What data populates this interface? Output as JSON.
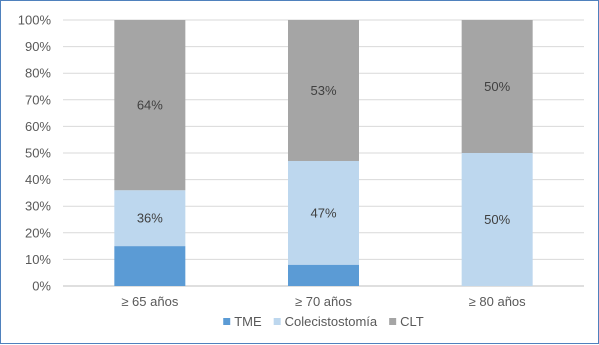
{
  "chart_data": {
    "type": "bar",
    "stacked": true,
    "percent": true,
    "categories": [
      "≥ 65 años",
      "≥ 70 años",
      "≥ 80 años"
    ],
    "series": [
      {
        "name": "TME",
        "values": [
          15,
          8,
          0
        ],
        "color": "#5b9bd5"
      },
      {
        "name": "Colecistostomía",
        "values": [
          21,
          39,
          50
        ],
        "color": "#bdd7ee"
      },
      {
        "name": "CLT",
        "values": [
          64,
          53,
          50
        ],
        "color": "#a5a5a5"
      }
    ],
    "data_labels": [
      {
        "category": 0,
        "series": 1,
        "text": "36%"
      },
      {
        "category": 0,
        "series": 2,
        "text": "64%"
      },
      {
        "category": 1,
        "series": 1,
        "text": "47%"
      },
      {
        "category": 1,
        "series": 2,
        "text": "53%"
      },
      {
        "category": 2,
        "series": 1,
        "text": "50%"
      },
      {
        "category": 2,
        "series": 2,
        "text": "50%"
      }
    ],
    "y_ticks": [
      "0%",
      "10%",
      "20%",
      "30%",
      "40%",
      "50%",
      "60%",
      "70%",
      "80%",
      "90%",
      "100%"
    ],
    "ylim": [
      0,
      100
    ],
    "grid": true,
    "legend_position": "bottom"
  }
}
